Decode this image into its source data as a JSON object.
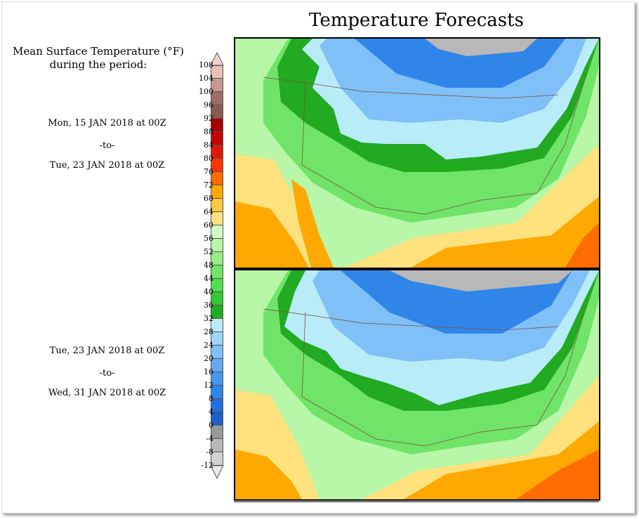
{
  "title": "Temperature Forecasts",
  "legend": {
    "title_line1": "Mean Surface Temperature (°F)",
    "title_line2": "during the period:",
    "labels": [
      "108",
      "104",
      "100",
      "96",
      "92",
      "88",
      "84",
      "80",
      "76",
      "72",
      "68",
      "64",
      "60",
      "56",
      "52",
      "48",
      "44",
      "40",
      "36",
      "32",
      "28",
      "24",
      "20",
      "16",
      "12",
      "8",
      "4",
      "0",
      "-4",
      "-8",
      "-12"
    ],
    "colors": [
      "#e6c0b8",
      "#c89890",
      "#a06e66",
      "#8a5a50",
      "#a80000",
      "#c20000",
      "#de1a08",
      "#ff3400",
      "#ff6c00",
      "#ffa800",
      "#ffc840",
      "#ffe27e",
      "#d2fcc8",
      "#b8f6a8",
      "#98ee84",
      "#70e468",
      "#4ede4e",
      "#36c836",
      "#22aa22",
      "#b8ecf8",
      "#a0d6f8",
      "#80c0f8",
      "#62aaf2",
      "#4498ee",
      "#3086e8",
      "#2070e0",
      "#1a60c8",
      "#989898",
      "#b8b8b8",
      "#d2d2d2"
    ],
    "over_color": "#f0d2d0",
    "under_color": "#e8e8e8"
  },
  "periods": [
    {
      "start": "Mon, 15 JAN 2018 at 00Z",
      "sep": "-to-",
      "end": "Tue, 23 JAN 2018 at 00Z"
    },
    {
      "start": "Tue, 23 JAN 2018 at 00Z",
      "sep": "-to-",
      "end": "Wed, 31 JAN 2018 at 00Z"
    }
  ]
}
